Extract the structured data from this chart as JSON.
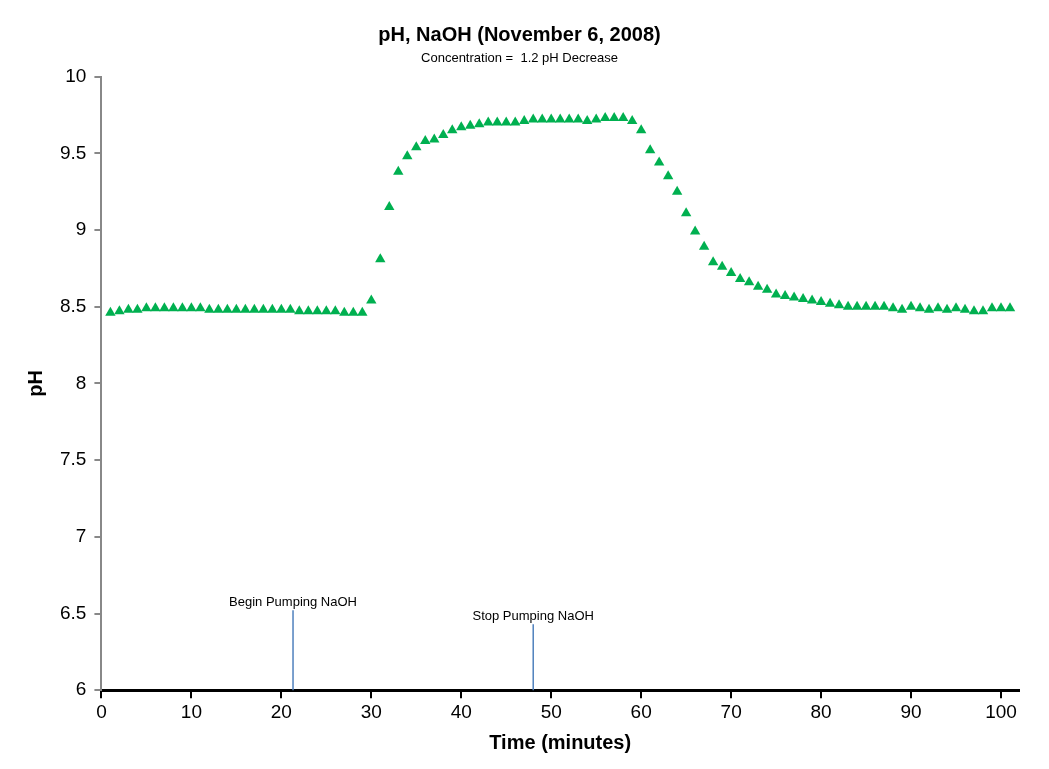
{
  "chart_data": {
    "type": "scatter",
    "title": "pH, NaOH (November 6, 2008)",
    "subtitle": "Concentration =  1.2 pH Decrease",
    "xlabel": "Time (minutes)",
    "ylabel": "pH",
    "x": [
      1,
      2,
      3,
      4,
      5,
      6,
      7,
      8,
      9,
      10,
      11,
      12,
      13,
      14,
      15,
      16,
      17,
      18,
      19,
      20,
      21,
      22,
      23,
      24,
      25,
      26,
      27,
      28,
      29,
      30,
      31,
      32,
      33,
      34,
      35,
      36,
      37,
      38,
      39,
      40,
      41,
      42,
      43,
      44,
      45,
      46,
      47,
      48,
      49,
      50,
      51,
      52,
      53,
      54,
      55,
      56,
      57,
      58,
      59,
      60,
      61,
      62,
      63,
      64,
      65,
      66,
      67,
      68,
      69,
      70,
      71,
      72,
      73,
      74,
      75,
      76,
      77,
      78,
      79,
      80,
      81,
      82,
      83,
      84,
      85,
      86,
      87,
      88,
      89,
      90,
      91,
      92,
      93,
      94,
      95,
      96,
      97,
      98,
      99,
      100,
      101
    ],
    "series": [
      {
        "color": "#00b050",
        "values": [
          8.46,
          8.47,
          8.48,
          8.48,
          8.49,
          8.49,
          8.49,
          8.49,
          8.49,
          8.49,
          8.49,
          8.48,
          8.48,
          8.48,
          8.48,
          8.48,
          8.48,
          8.48,
          8.48,
          8.48,
          8.48,
          8.47,
          8.47,
          8.47,
          8.47,
          8.47,
          8.46,
          8.46,
          8.46,
          8.54,
          8.81,
          9.15,
          9.38,
          9.48,
          9.54,
          9.58,
          9.59,
          9.62,
          9.65,
          9.67,
          9.68,
          9.69,
          9.7,
          9.7,
          9.7,
          9.7,
          9.71,
          9.72,
          9.72,
          9.72,
          9.72,
          9.72,
          9.72,
          9.71,
          9.72,
          9.73,
          9.73,
          9.73,
          9.71,
          9.65,
          9.52,
          9.44,
          9.35,
          9.25,
          9.11,
          8.99,
          8.89,
          8.79,
          8.76,
          8.72,
          8.68,
          8.66,
          8.63,
          8.61,
          8.58,
          8.57,
          8.56,
          8.55,
          8.54,
          8.53,
          8.52,
          8.51,
          8.5,
          8.5,
          8.5,
          8.5,
          8.5,
          8.49,
          8.48,
          8.5,
          8.49,
          8.48,
          8.49,
          8.48,
          8.49,
          8.48,
          8.47,
          8.47,
          8.49,
          8.49,
          8.49
        ]
      }
    ],
    "xlim": [
      0,
      102
    ],
    "xticks": [
      0,
      10,
      20,
      30,
      40,
      50,
      60,
      70,
      80,
      90,
      100
    ],
    "ylim": [
      6,
      10
    ],
    "yticks": [
      6,
      6.5,
      7,
      7.5,
      8,
      8.5,
      9,
      9.5,
      10
    ],
    "marker": "triangle",
    "grid": false,
    "legend": false,
    "ref_lines": [
      {
        "axis": "x",
        "value": 21.3,
        "label": "Begin Pumping NaOH",
        "color": "#4f81bd"
      },
      {
        "axis": "x",
        "value": 48,
        "label": "Stop Pumping NaOH",
        "color": "#4f81bd"
      }
    ]
  }
}
